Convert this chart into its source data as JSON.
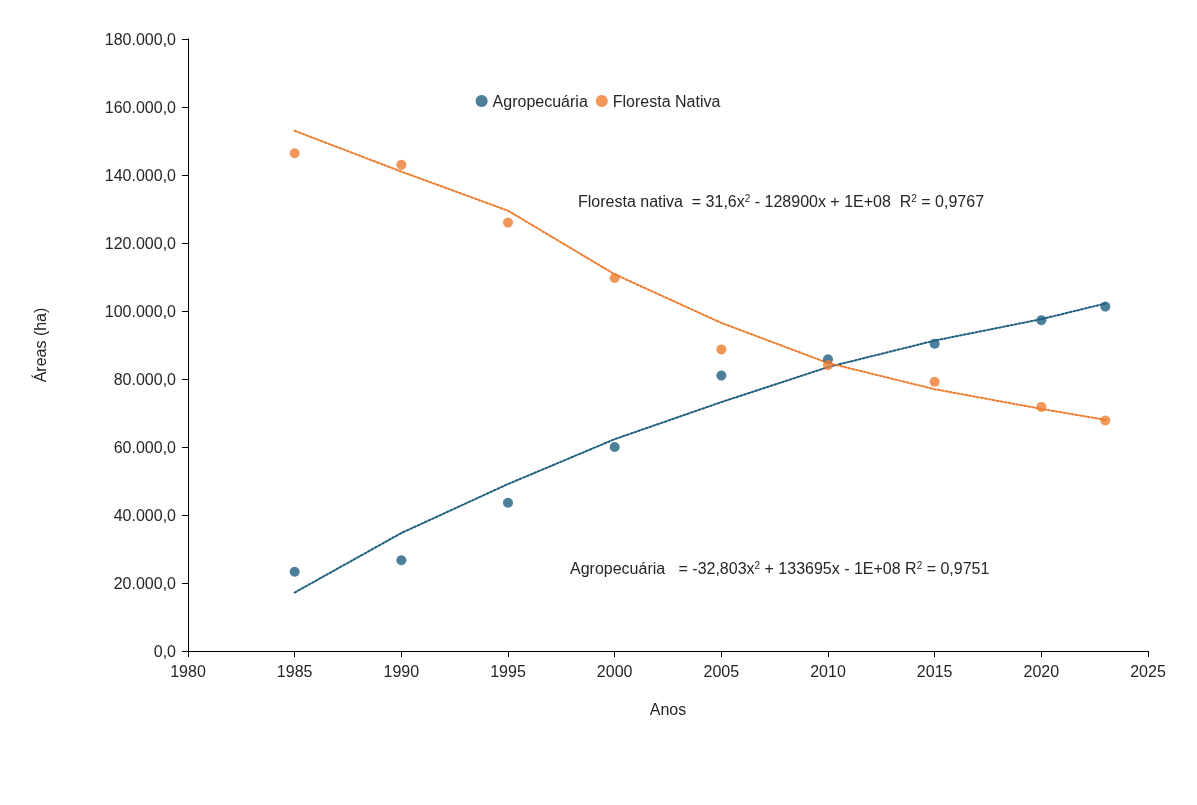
{
  "chart_data": {
    "type": "scatter",
    "xlabel": "Anos",
    "ylabel": "Áreas (ha)",
    "legend": "top",
    "grid": false,
    "marker": "circle",
    "xlim": [
      1980,
      2025
    ],
    "xticks": [
      1980,
      1985,
      1990,
      1995,
      2000,
      2005,
      2010,
      2015,
      2020,
      2025
    ],
    "ylim": [
      0,
      180000
    ],
    "yticks": [
      {
        "value": 0,
        "label": "0,0"
      },
      {
        "value": 20000,
        "label": "20.000,0"
      },
      {
        "value": 40000,
        "label": "40.000,0"
      },
      {
        "value": 60000,
        "label": "60.000,0"
      },
      {
        "value": 80000,
        "label": "80.000,0"
      },
      {
        "value": 100000,
        "label": "100.000,0"
      },
      {
        "value": 120000,
        "label": "120.000,0"
      },
      {
        "value": 140000,
        "label": "140.000,0"
      },
      {
        "value": 160000,
        "label": "160.000,0"
      },
      {
        "value": 180000,
        "label": "180.000,0"
      }
    ],
    "x": [
      1985,
      1990,
      1995,
      2000,
      2005,
      2010,
      2015,
      2020,
      2023
    ],
    "series": [
      {
        "name": "Agropecuária",
        "color": "#1f5f7f",
        "values": [
          23300,
          26700,
          43600,
          60000,
          81000,
          85800,
          90400,
          97300,
          101300
        ]
      },
      {
        "name": "Floresta Nativa",
        "color": "#ed7d31",
        "values": [
          146400,
          143000,
          126000,
          109700,
          88700,
          84100,
          79200,
          71800,
          67800
        ]
      },
      {
        "type": "line",
        "line_style": "dotted",
        "marker": "none",
        "color": "#1f5f7f",
        "x": [
          1985,
          1990,
          1995,
          2000,
          2005,
          2010,
          2015,
          2020,
          2023
        ],
        "values": [
          17200,
          34700,
          49100,
          62300,
          73200,
          83500,
          91300,
          97600,
          102200
        ]
      },
      {
        "type": "line",
        "line_style": "dotted",
        "marker": "none",
        "color": "#ed7d31",
        "x": [
          1985,
          1990,
          1995,
          2000,
          2005,
          2010,
          2015,
          2020,
          2023
        ],
        "values": [
          153000,
          141000,
          129500,
          110800,
          96500,
          84700,
          77000,
          71200,
          68000
        ]
      }
    ],
    "annotations": [
      "Floresta nativa  = 31,6x$^{2}$ - 128900x + 1E+08  R$^{2}$ = 0,9767",
      "Agropecuária   = -32,803x$^{2}$ + 133695x - 1E+08 R$^{2}$ = 0,9751"
    ]
  }
}
